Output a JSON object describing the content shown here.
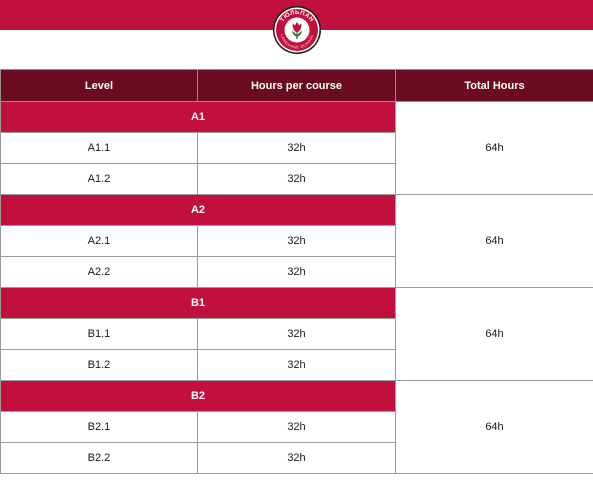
{
  "logo": {
    "text_top": "ТЮЛЬПАН",
    "text_bottom": "LANGUAGE SCHOOL",
    "colors": {
      "ring": "#c1103d",
      "center": "#ffffff",
      "border": "#1a1a1a"
    }
  },
  "colors": {
    "band": "#c1103d",
    "header_bg": "#6b0b22",
    "group_bg": "#c1103d"
  },
  "table": {
    "headers": [
      "Level",
      "Hours per course",
      "Total Hours"
    ],
    "groups": [
      {
        "name": "A1",
        "total": "64h",
        "rows": [
          {
            "level": "A1.1",
            "hours": "32h"
          },
          {
            "level": "A1.2",
            "hours": "32h"
          }
        ]
      },
      {
        "name": "A2",
        "total": "64h",
        "rows": [
          {
            "level": "A2.1",
            "hours": "32h"
          },
          {
            "level": "A2.2",
            "hours": "32h"
          }
        ]
      },
      {
        "name": "B1",
        "total": "64h",
        "rows": [
          {
            "level": "B1.1",
            "hours": "32h"
          },
          {
            "level": "B1.2",
            "hours": "32h"
          }
        ]
      },
      {
        "name": "B2",
        "total": "64h",
        "rows": [
          {
            "level": "B2.1",
            "hours": "32h"
          },
          {
            "level": "B2.2",
            "hours": "32h"
          }
        ]
      }
    ]
  }
}
